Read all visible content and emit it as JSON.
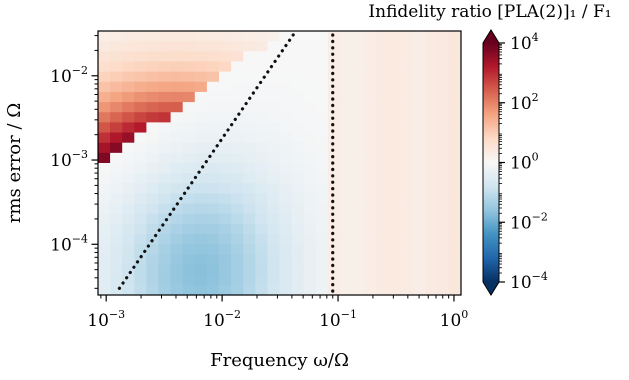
{
  "chart_data": {
    "type": "heatmap",
    "title": "",
    "xlabel": "Frequency ω/Ω",
    "ylabel": "rms error / Ω",
    "x_scale": "log",
    "y_scale": "log",
    "xlim": [
      0.00085,
      1.15
    ],
    "ylim": [
      2.5e-05,
      0.034
    ],
    "x_ticks": [
      {
        "value": 0.001,
        "base": "10",
        "exp": "−3"
      },
      {
        "value": 0.01,
        "base": "10",
        "exp": "−2"
      },
      {
        "value": 0.1,
        "base": "10",
        "exp": "−1"
      },
      {
        "value": 1,
        "base": "10",
        "exp": "0"
      }
    ],
    "y_ticks": [
      {
        "value": 0.0001,
        "base": "10",
        "exp": "−4"
      },
      {
        "value": 0.001,
        "base": "10",
        "exp": "−3"
      },
      {
        "value": 0.01,
        "base": "10",
        "exp": "−2"
      }
    ],
    "colorbar": {
      "label": "Infidelity ratio [PLA(2)]₁ / F₁",
      "scale": "log",
      "colormap": "RdBu_r",
      "range": [
        0.0001,
        10000
      ],
      "ticks": [
        {
          "value": 10000,
          "base": "10",
          "exp": "4"
        },
        {
          "value": 100,
          "base": "10",
          "exp": "2"
        },
        {
          "value": 1,
          "base": "10",
          "exp": "0"
        },
        {
          "value": 0.01,
          "base": "10",
          "exp": "−2"
        },
        {
          "value": 0.0001,
          "base": "10",
          "exp": "−4"
        }
      ],
      "extend": "both"
    },
    "annotations": [
      {
        "type": "dotted-line",
        "description": "diagonal boundary",
        "points": [
          [
            0.0013,
            3e-05
          ],
          [
            0.042,
            0.032
          ]
        ]
      },
      {
        "type": "dotted-line",
        "description": "vertical line",
        "x": 0.09
      }
    ],
    "grid": false,
    "legend": "none"
  }
}
